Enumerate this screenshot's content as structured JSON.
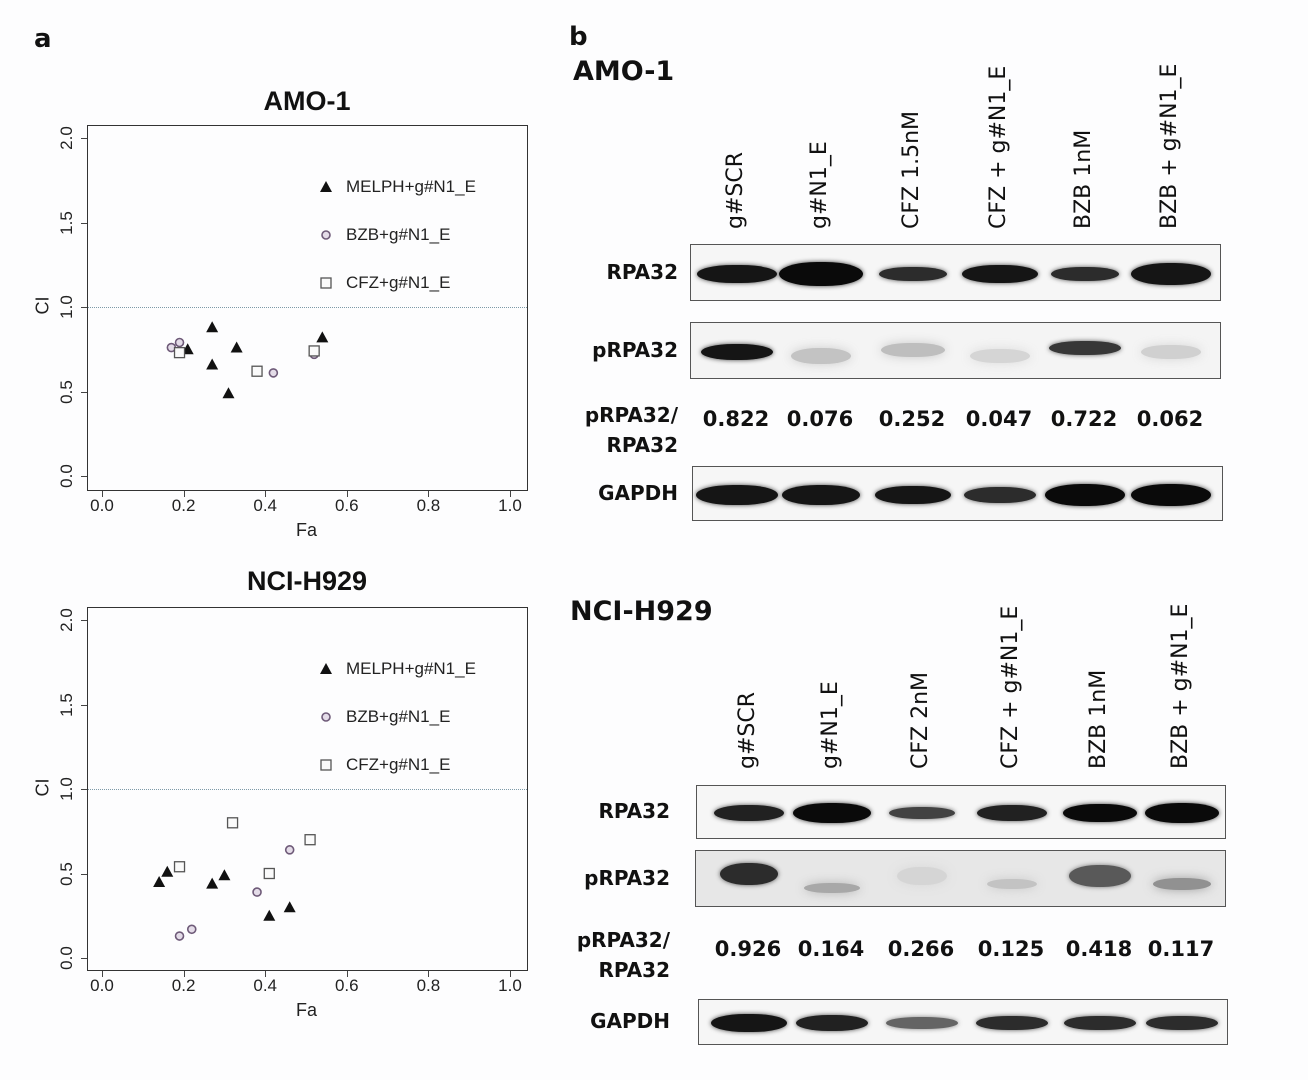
{
  "panel_a": {
    "letter": "a",
    "plots": [
      {
        "title": "AMO-1",
        "xlabel": "Fa",
        "ylabel": "CI",
        "xticks": [
          "0.0",
          "0.2",
          "0.4",
          "0.6",
          "0.8",
          "1.0"
        ],
        "yticks": [
          "0.0",
          "0.5",
          "1.0",
          "1.5",
          "2.0"
        ],
        "legend": [
          "MELPH+g#N1_E",
          "BZB+g#N1_E",
          "CFZ+g#N1_E"
        ]
      },
      {
        "title": "NCI-H929",
        "xlabel": "Fa",
        "ylabel": "CI",
        "xticks": [
          "0.0",
          "0.2",
          "0.4",
          "0.6",
          "0.8",
          "1.0"
        ],
        "yticks": [
          "0.0",
          "0.5",
          "1.0",
          "1.5",
          "2.0"
        ],
        "legend": [
          "MELPH+g#N1_E",
          "BZB+g#N1_E",
          "CFZ+g#N1_E"
        ]
      }
    ]
  },
  "panel_b": {
    "letter": "b",
    "blots": [
      {
        "cell_line": "AMO-1",
        "lanes": [
          "g#SCR",
          "g#N1_E",
          "CFZ 1.5nM",
          "CFZ + g#N1_E",
          "BZB 1nM",
          "BZB + g#N1_E"
        ],
        "rows": {
          "rpa32": "RPA32",
          "prpa32": "pRPA32",
          "ratio_line1": "pRPA32/",
          "ratio_line2": "RPA32",
          "gapdh": "GAPDH"
        },
        "ratios": [
          "0.822",
          "0.076",
          "0.252",
          "0.047",
          "0.722",
          "0.062"
        ]
      },
      {
        "cell_line": "NCI-H929",
        "lanes": [
          "g#SCR",
          "g#N1_E",
          "CFZ 2nM",
          "CFZ + g#N1_E",
          "BZB 1nM",
          "BZB + g#N1_E"
        ],
        "rows": {
          "rpa32": "RPA32",
          "prpa32": "pRPA32",
          "ratio_line1": "pRPA32/",
          "ratio_line2": "RPA32",
          "gapdh": "GAPDH"
        },
        "ratios": [
          "0.926",
          "0.164",
          "0.266",
          "0.125",
          "0.418",
          "0.117"
        ]
      }
    ]
  },
  "chart_data": [
    {
      "type": "scatter",
      "title": "AMO-1",
      "xlabel": "Fa",
      "ylabel": "CI",
      "xlim": [
        0,
        1
      ],
      "ylim": [
        0,
        2
      ],
      "reference_line": {
        "y": 1.0,
        "style": "dotted"
      },
      "legend_position": "upper right",
      "series": [
        {
          "name": "MELPH+g#N1_E",
          "marker": "filled-triangle",
          "points": [
            [
              0.21,
              0.75
            ],
            [
              0.27,
              0.88
            ],
            [
              0.27,
              0.66
            ],
            [
              0.31,
              0.49
            ],
            [
              0.33,
              0.76
            ],
            [
              0.54,
              0.82
            ]
          ]
        },
        {
          "name": "BZB+g#N1_E",
          "marker": "open-circle",
          "points": [
            [
              0.17,
              0.76
            ],
            [
              0.19,
              0.79
            ],
            [
              0.42,
              0.61
            ],
            [
              0.52,
              0.72
            ]
          ]
        },
        {
          "name": "CFZ+g#N1_E",
          "marker": "open-square",
          "points": [
            [
              0.19,
              0.73
            ],
            [
              0.38,
              0.62
            ],
            [
              0.52,
              0.74
            ]
          ]
        }
      ]
    },
    {
      "type": "scatter",
      "title": "NCI-H929",
      "xlabel": "Fa",
      "ylabel": "CI",
      "xlim": [
        0,
        1
      ],
      "ylim": [
        0,
        2
      ],
      "reference_line": {
        "y": 1.0,
        "style": "dotted"
      },
      "legend_position": "upper right",
      "series": [
        {
          "name": "MELPH+g#N1_E",
          "marker": "filled-triangle",
          "points": [
            [
              0.14,
              0.45
            ],
            [
              0.16,
              0.51
            ],
            [
              0.27,
              0.44
            ],
            [
              0.3,
              0.49
            ],
            [
              0.41,
              0.25
            ],
            [
              0.46,
              0.3
            ]
          ]
        },
        {
          "name": "BZB+g#N1_E",
          "marker": "open-circle",
          "points": [
            [
              0.19,
              0.13
            ],
            [
              0.22,
              0.17
            ],
            [
              0.38,
              0.39
            ],
            [
              0.46,
              0.64
            ]
          ]
        },
        {
          "name": "CFZ+g#N1_E",
          "marker": "open-square",
          "points": [
            [
              0.19,
              0.54
            ],
            [
              0.32,
              0.8
            ],
            [
              0.41,
              0.5
            ],
            [
              0.51,
              0.7
            ]
          ]
        }
      ]
    }
  ]
}
